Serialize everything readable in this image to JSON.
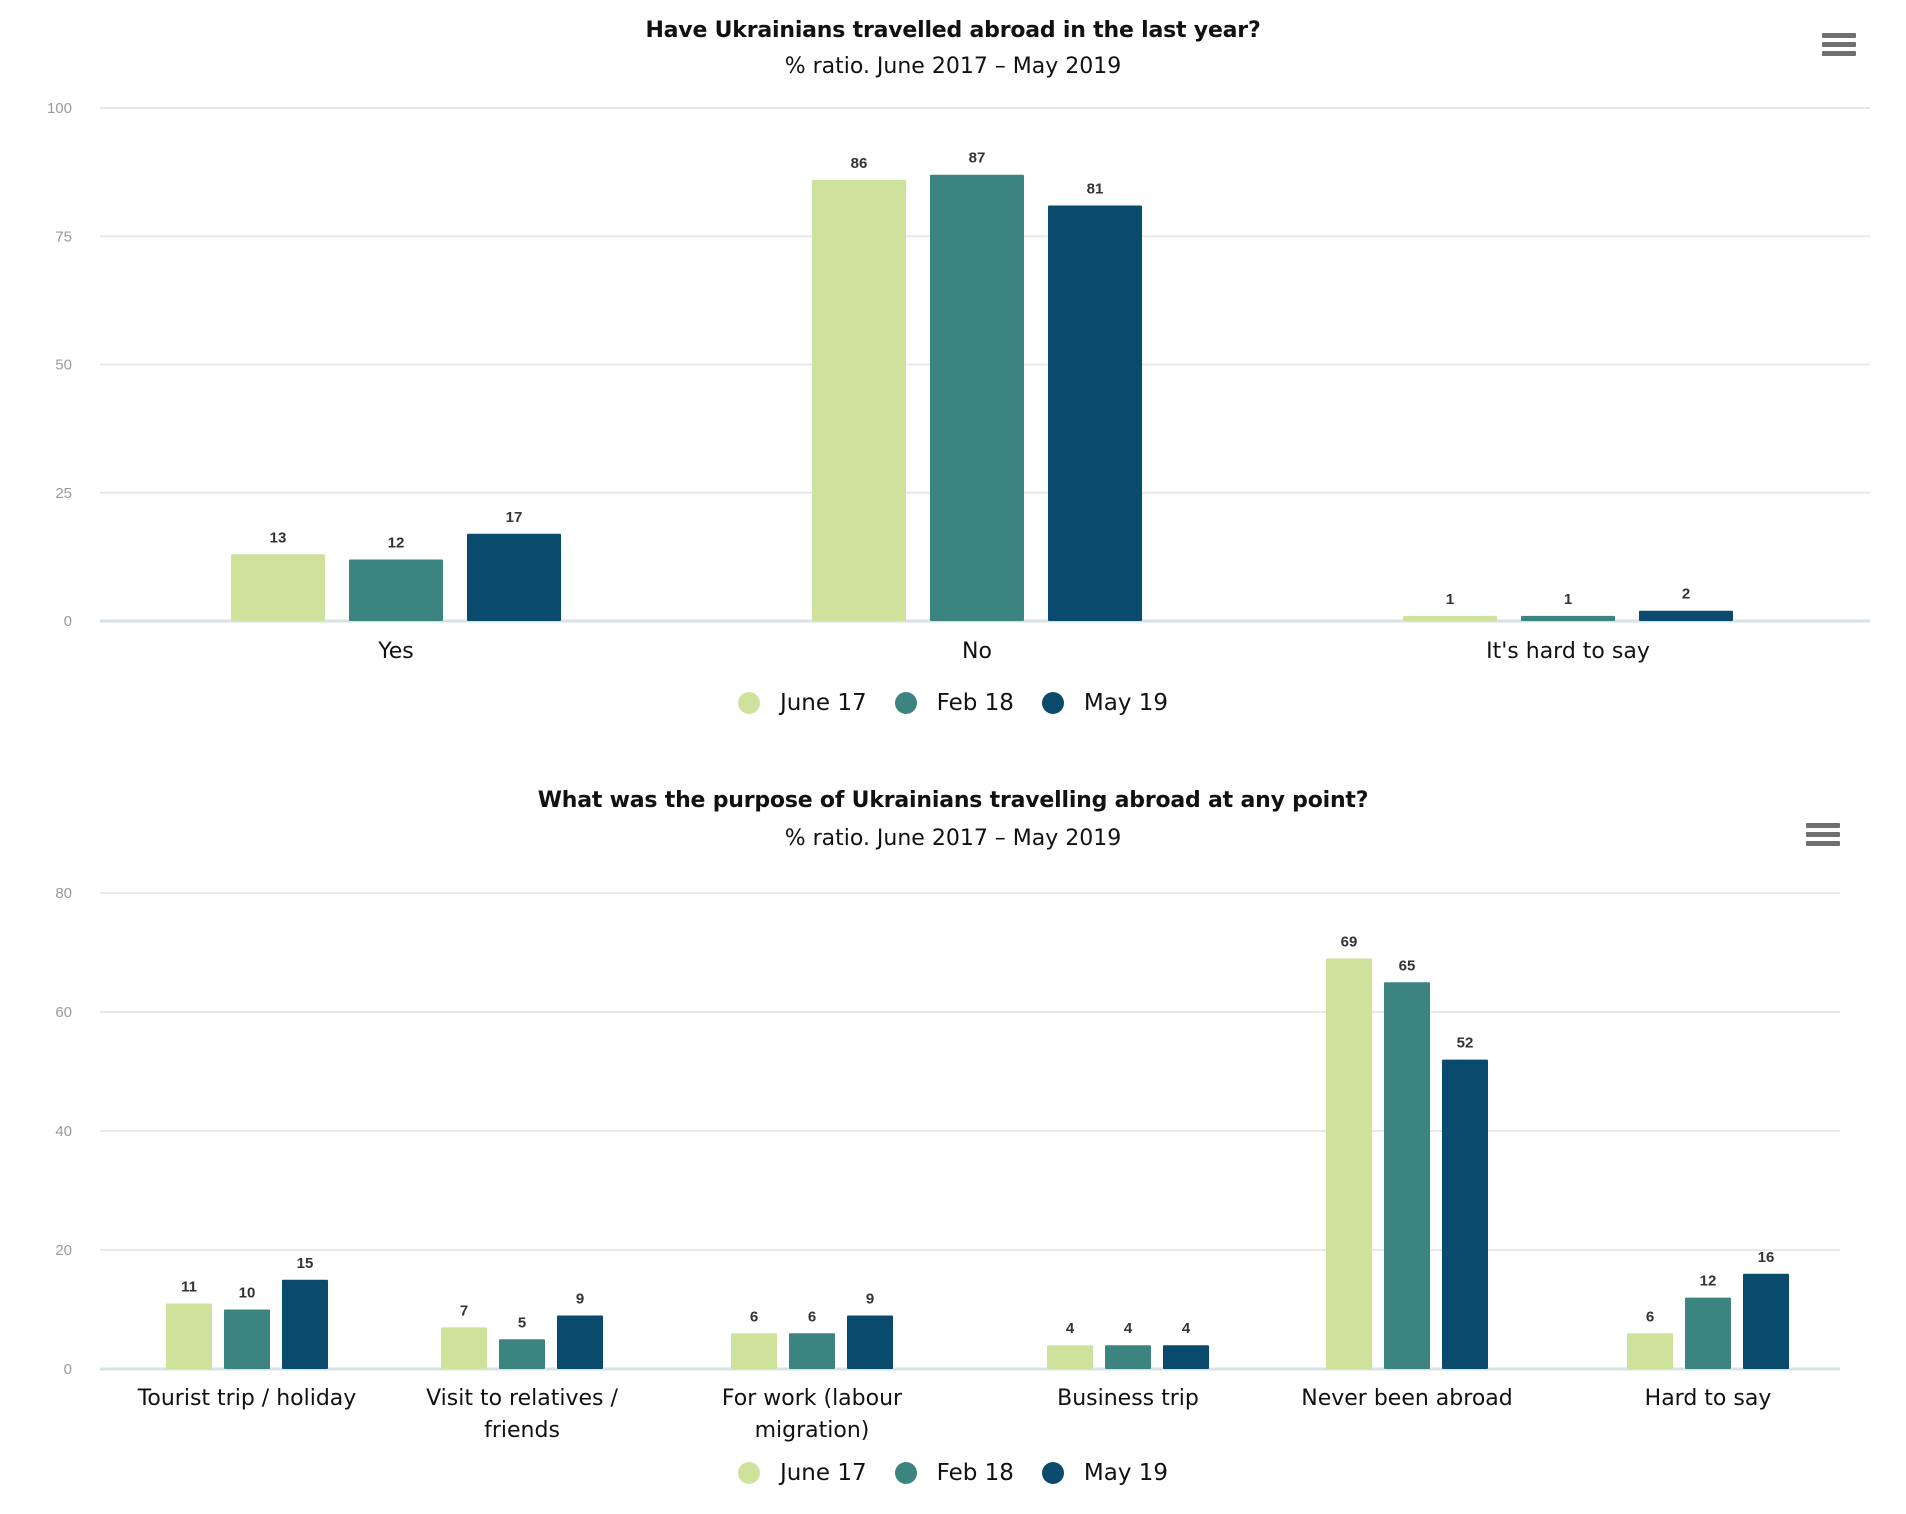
{
  "colors": {
    "June 17": "#cfe29c",
    "Feb 18": "#3b8480",
    "May 19": "#0a4a6c",
    "gridline": "#e8e8e8",
    "axis": "#d6e2e6"
  },
  "chart_data": [
    {
      "type": "bar",
      "title": "Have Ukrainians travelled abroad in the last year?",
      "subtitle": "% ratio. June 2017 – May 2019",
      "xlabel": "",
      "ylabel": "",
      "ylim": [
        0,
        100
      ],
      "yticks": [
        0,
        25,
        50,
        75,
        100
      ],
      "grid": true,
      "legend_position": "bottom-center",
      "menu_icon": "hamburger-menu-icon",
      "categories": [
        "Yes",
        "No",
        "It's hard to say"
      ],
      "series": [
        {
          "name": "June 17",
          "values": [
            13,
            86,
            1
          ]
        },
        {
          "name": "Feb 18",
          "values": [
            12,
            87,
            1
          ]
        },
        {
          "name": "May 19",
          "values": [
            17,
            81,
            2
          ]
        }
      ]
    },
    {
      "type": "bar",
      "title": "What was the purpose of Ukrainians travelling abroad at any point?",
      "subtitle": "% ratio. June 2017 – May 2019",
      "xlabel": "",
      "ylabel": "",
      "ylim": [
        0,
        80
      ],
      "yticks": [
        0,
        20,
        40,
        60,
        80
      ],
      "grid": true,
      "legend_position": "bottom-center",
      "menu_icon": "hamburger-menu-icon",
      "categories": [
        [
          "Tourist trip / holiday"
        ],
        [
          "Visit to relatives /",
          "friends"
        ],
        [
          "For work (labour",
          "migration)"
        ],
        [
          "Business trip"
        ],
        [
          "Never been abroad"
        ],
        [
          "Hard to say"
        ]
      ],
      "series": [
        {
          "name": "June 17",
          "values": [
            11,
            7,
            6,
            4,
            69,
            6
          ]
        },
        {
          "name": "Feb 18",
          "values": [
            10,
            5,
            6,
            4,
            65,
            12
          ]
        },
        {
          "name": "May 19",
          "values": [
            15,
            9,
            9,
            4,
            52,
            16
          ]
        }
      ]
    }
  ]
}
